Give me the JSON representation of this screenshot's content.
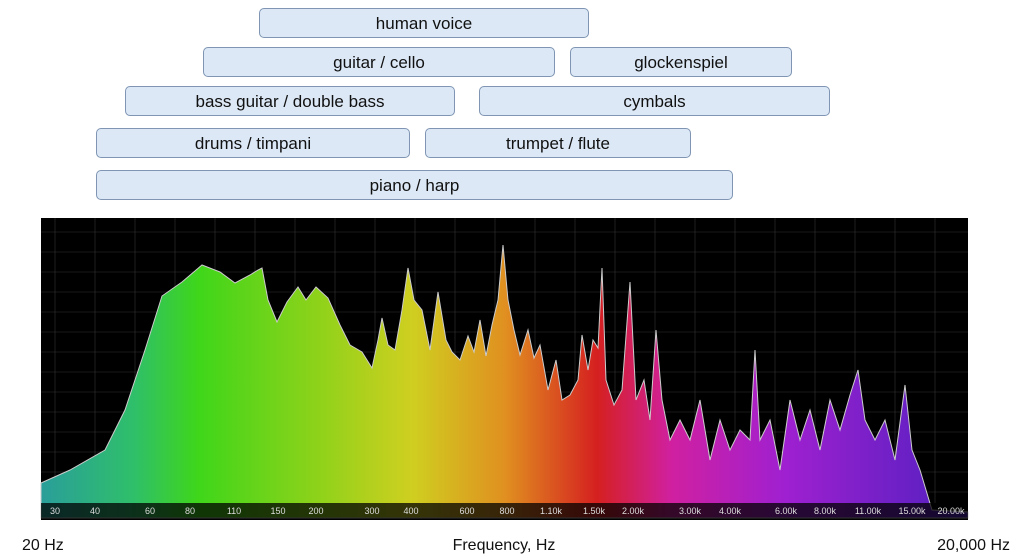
{
  "ranges": [
    {
      "label": "human voice"
    },
    {
      "label": "guitar / cello"
    },
    {
      "label": "glockenspiel"
    },
    {
      "label": "bass guitar / double bass"
    },
    {
      "label": "cymbals"
    },
    {
      "label": "drums / timpani"
    },
    {
      "label": "trumpet / flute"
    },
    {
      "label": "piano / harp"
    }
  ],
  "spectrum": {
    "ticks": [
      "30",
      "40",
      "60",
      "80",
      "110",
      "150",
      "200",
      "300",
      "400",
      "600",
      "800",
      "1.10k",
      "1.50k",
      "2.00k",
      "3.00k",
      "4.00k",
      "6.00k",
      "8.00k",
      "11.00k",
      "15.00k",
      "20.00k"
    ]
  },
  "footer": {
    "left": "20 Hz",
    "center": "Frequency, Hz",
    "right": "20,000 Hz"
  }
}
